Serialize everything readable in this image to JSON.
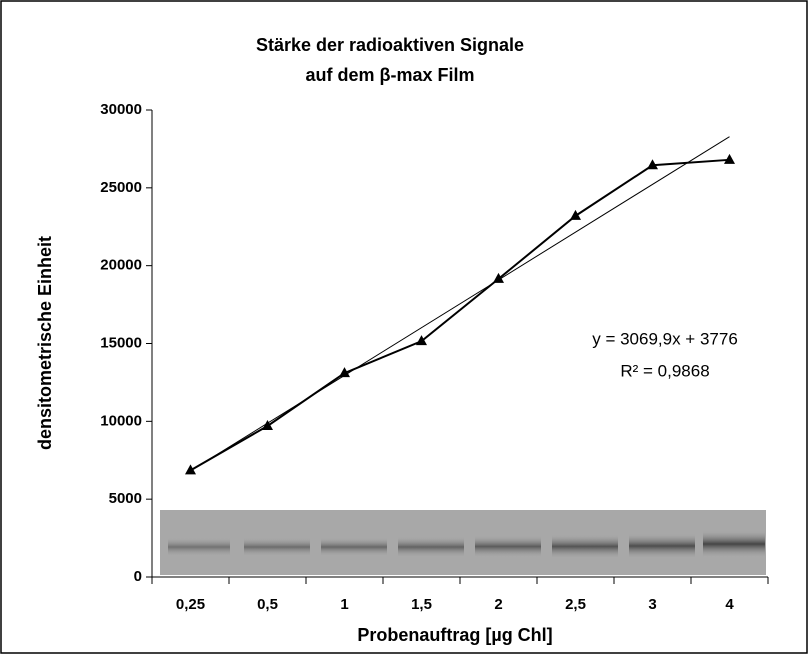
{
  "chart_data": {
    "type": "line",
    "title": [
      "Stärke der radioaktiven Signale",
      "auf dem β-max Film"
    ],
    "x_label": "Probenauftrag  [µg Chl]",
    "y_label": "densitometrische Einheit",
    "categories": [
      "0,25",
      "0,5",
      "1",
      "1,5",
      "2",
      "2,5",
      "3",
      "4"
    ],
    "values": [
      6850,
      9700,
      13100,
      15150,
      19150,
      23200,
      26450,
      26800
    ],
    "color": "#000000",
    "ylim": [
      0,
      30000
    ],
    "yticks": [
      0,
      5000,
      10000,
      15000,
      20000,
      25000,
      30000
    ],
    "trendline": {
      "equation": "y = 3069,9x + 3776",
      "r_squared": "R² = 0,9868"
    }
  }
}
